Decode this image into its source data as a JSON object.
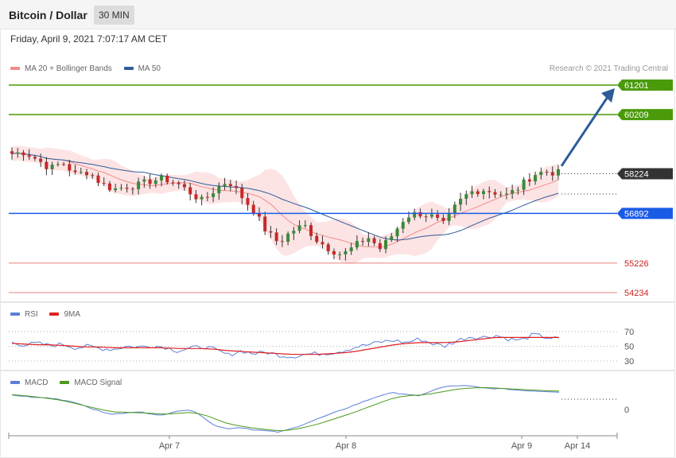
{
  "header": {
    "title": "Bitcoin / Dollar",
    "timeframe": "30 MIN"
  },
  "date": "Friday, April 9, 2021 7:07:17 AM CET",
  "credit": "Research © 2021 Trading Central",
  "legends": {
    "price": [
      {
        "label": "MA 20 + Bollinger Bands",
        "color": "#f28b8b"
      },
      {
        "label": "MA 50",
        "color": "#2e5b9a"
      }
    ],
    "rsi": [
      {
        "label": "RSI",
        "color": "#5b7fd6"
      },
      {
        "label": "9MA",
        "color": "#e02020"
      }
    ],
    "macd": [
      {
        "label": "MACD",
        "color": "#5b7fd6"
      },
      {
        "label": "MACD Signal",
        "color": "#4a9a1a"
      }
    ]
  },
  "colors": {
    "resistance": "#4a9a0a",
    "pivot": "#1a5be6",
    "support": "#e88080",
    "support_text": "#cc2222",
    "current": "#333333",
    "up_candle": "#3a8a3a",
    "down_candle": "#c62828",
    "band_fill": "#fde4e4",
    "arrow": "#2e5b9a"
  },
  "chart_data": [
    {
      "type": "candlestick",
      "panel": "price",
      "x_ticks": [
        "Apr 7",
        "Apr 8",
        "Apr 9",
        "Apr 14"
      ],
      "levels": [
        {
          "value": 61201,
          "kind": "resistance",
          "label": "61201"
        },
        {
          "value": 60209,
          "kind": "resistance",
          "label": "60209"
        },
        {
          "value": 58224,
          "kind": "current",
          "label": "58224"
        },
        {
          "value": 56892,
          "kind": "pivot",
          "label": "56892"
        },
        {
          "value": 55226,
          "kind": "support",
          "label": "55226"
        },
        {
          "value": 54234,
          "kind": "support",
          "label": "54234"
        }
      ],
      "close_path": [
        58900,
        58950,
        58700,
        58400,
        58600,
        58200,
        58300,
        57900,
        57700,
        57800,
        57850,
        58000,
        58050,
        57900,
        57600,
        57300,
        57700,
        58000,
        57500,
        57000,
        56300,
        55900,
        56300,
        56500,
        56000,
        55700,
        55500,
        55800,
        56100,
        55700,
        56200,
        56800,
        56900,
        56800,
        56500,
        57200,
        57600,
        57700,
        57600,
        57500,
        57800,
        58200,
        58300,
        58250
      ],
      "forecast_target": 61201
    },
    {
      "type": "line",
      "panel": "RSI",
      "y_ticks": [
        70,
        50,
        30
      ],
      "ylim": [
        20,
        80
      ],
      "series": [
        {
          "name": "RSI",
          "values": [
            55,
            52,
            54,
            51,
            53,
            48,
            50,
            47,
            46,
            50,
            49,
            51,
            49,
            44,
            47,
            50,
            45,
            38,
            44,
            40,
            42,
            38,
            36,
            39,
            40,
            41,
            44,
            49,
            52,
            56,
            58,
            55,
            60,
            54,
            50,
            58,
            63,
            62,
            65,
            60,
            58,
            66,
            62,
            60
          ]
        },
        {
          "name": "9MA",
          "values": [
            54,
            53,
            52,
            52,
            51,
            50,
            49,
            49,
            48,
            48,
            48,
            48,
            48,
            47,
            47,
            47,
            46,
            44,
            43,
            42,
            41,
            40,
            39,
            39,
            39,
            40,
            41,
            43,
            46,
            49,
            52,
            54,
            55,
            55,
            55,
            56,
            58,
            60,
            62,
            62,
            62,
            62,
            62,
            62
          ]
        }
      ]
    },
    {
      "type": "line",
      "panel": "MACD",
      "y_ticks": [
        0
      ],
      "series": [
        {
          "name": "MACD",
          "values": [
            60,
            55,
            50,
            48,
            40,
            30,
            10,
            -10,
            -20,
            -15,
            -10,
            -18,
            -25,
            -5,
            0,
            -30,
            -70,
            -80,
            -75,
            -85,
            -90,
            -95,
            -80,
            -60,
            -40,
            -20,
            0,
            20,
            40,
            60,
            70,
            65,
            55,
            80,
            95,
            100,
            98,
            90,
            88,
            85,
            80,
            78,
            76,
            74
          ]
        },
        {
          "name": "MACD Signal",
          "values": [
            62,
            58,
            52,
            45,
            38,
            25,
            12,
            0,
            -10,
            -12,
            -14,
            -16,
            -20,
            -16,
            -12,
            -20,
            -40,
            -60,
            -70,
            -78,
            -84,
            -90,
            -85,
            -75,
            -62,
            -45,
            -28,
            -10,
            10,
            30,
            48,
            58,
            60,
            66,
            76,
            85,
            90,
            92,
            90,
            87,
            84,
            81,
            79,
            77
          ]
        }
      ]
    }
  ]
}
